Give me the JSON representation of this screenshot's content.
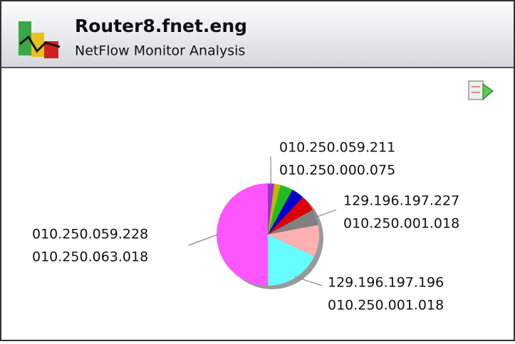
{
  "header": {
    "title": "Router8.fnet.eng",
    "subtitle": "NetFlow Monitor Analysis"
  },
  "chart_data": {
    "type": "pie",
    "categories": [
      [
        "010.250.059.211",
        "010.250.000.075"
      ],
      null,
      null,
      null,
      null,
      [
        "129.196.197.227",
        "010.250.001.018"
      ],
      null,
      [
        "129.196.197.196",
        "010.250.001.018"
      ],
      [
        "010.250.059.228",
        "010.250.063.018"
      ]
    ],
    "values": [
      2,
      2,
      4,
      4,
      5,
      5,
      10,
      18,
      50
    ],
    "colors": [
      "#9933cc",
      "#c8b400",
      "#22bb22",
      "#0000cc",
      "#dd0000",
      "#808080",
      "#ffb0b0",
      "#66ffff",
      "#ff55ff"
    ]
  }
}
